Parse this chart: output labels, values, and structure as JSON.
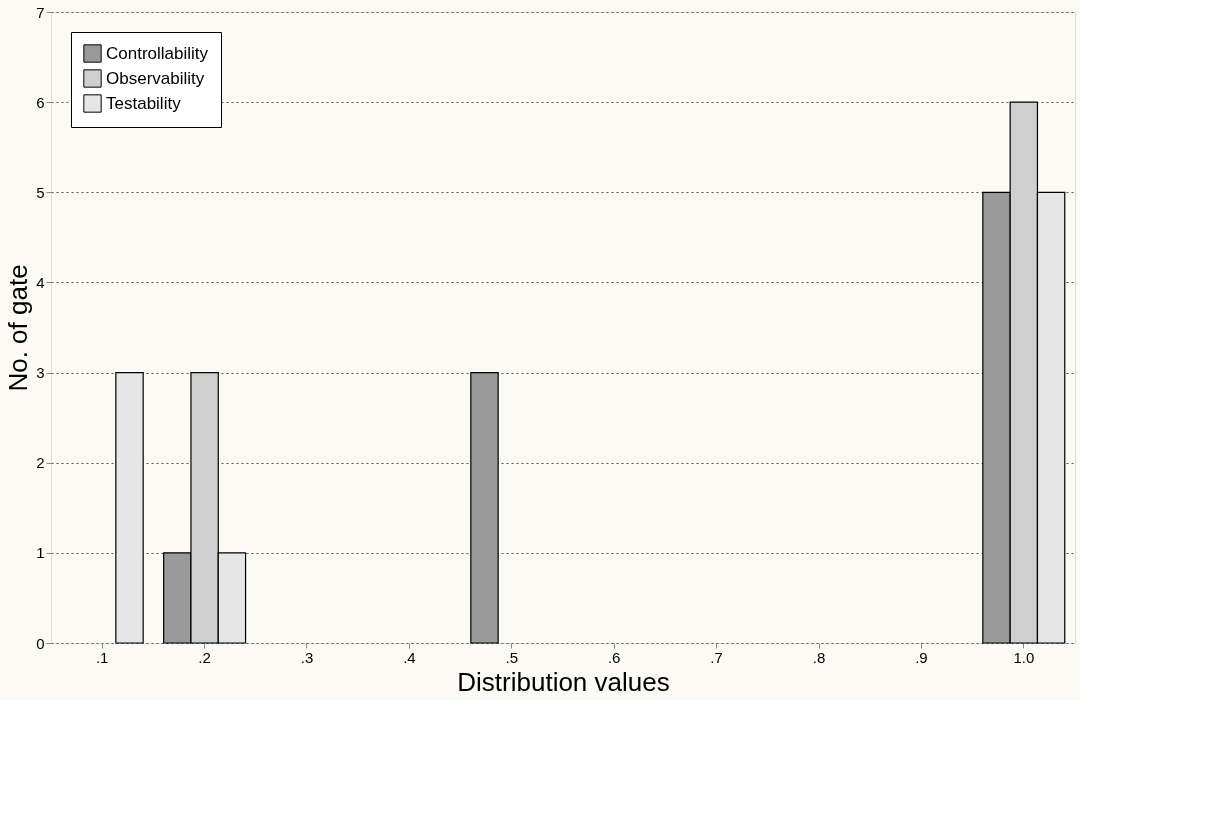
{
  "chart_data": {
    "type": "bar",
    "xlabel": "Distribution values",
    "ylabel": "No. of gate",
    "categories": [
      ".1",
      ".2",
      ".3",
      ".4",
      ".5",
      ".6",
      ".7",
      ".8",
      ".9",
      "1.0"
    ],
    "series": [
      {
        "name": "Controllability",
        "color": "#9a9a9a",
        "values": [
          null,
          1,
          null,
          null,
          3,
          null,
          null,
          null,
          null,
          5
        ]
      },
      {
        "name": "Observability",
        "color": "#cfcfcf",
        "values": [
          null,
          3,
          null,
          null,
          null,
          null,
          null,
          null,
          null,
          6
        ]
      },
      {
        "name": "Testability",
        "color": "#e6e6e6",
        "values": [
          3,
          1,
          null,
          null,
          null,
          null,
          null,
          null,
          null,
          5
        ]
      }
    ],
    "ylim": [
      0,
      7
    ],
    "yticks": [
      0,
      1,
      2,
      3,
      4,
      5,
      6,
      7
    ],
    "grid": "y",
    "legend": "top left"
  }
}
